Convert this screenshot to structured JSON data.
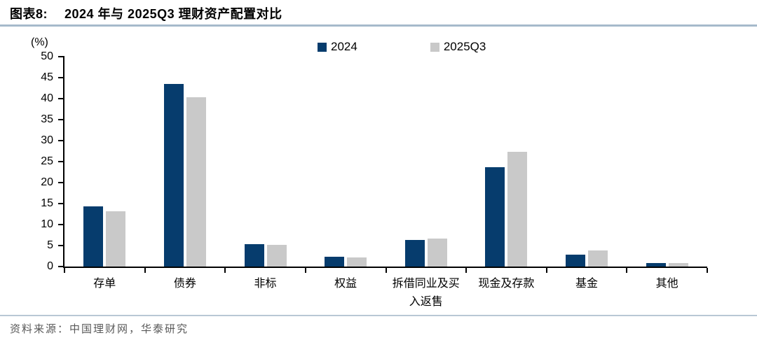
{
  "header": {
    "figure_label": "图表8:",
    "title": "2024 年与 2025Q3 理财资产配置对比"
  },
  "chart_data": {
    "type": "bar",
    "title": "2024 年与 2025Q3 理财资产配置对比",
    "unit_label": "(%)",
    "xlabel": "",
    "ylabel": "(%)",
    "ylim": [
      0,
      50
    ],
    "ytick_step": 5,
    "yticks": [
      50,
      45,
      40,
      35,
      30,
      25,
      20,
      15,
      10,
      5,
      0
    ],
    "grid": false,
    "legend_position": "top",
    "categories": [
      "存单",
      "债券",
      "非标",
      "权益",
      "拆借同业及买入返售",
      "现金及存款",
      "基金",
      "其他"
    ],
    "series": [
      {
        "name": "2024",
        "color": "#063c6d",
        "values": [
          14.4,
          43.5,
          5.4,
          2.4,
          6.4,
          23.7,
          2.8,
          0.8
        ]
      },
      {
        "name": "2025Q3",
        "color": "#c9c9c9",
        "values": [
          13.1,
          40.4,
          5.1,
          2.1,
          6.7,
          27.4,
          3.8,
          0.8
        ]
      }
    ]
  },
  "colors": {
    "series_2024": "#063c6d",
    "series_2025q3": "#c9c9c9",
    "divider": "#a6bacb",
    "axis": "#000000",
    "source_text": "#595959"
  },
  "footer": {
    "source_text": "资料来源：中国理财网，华泰研究"
  }
}
